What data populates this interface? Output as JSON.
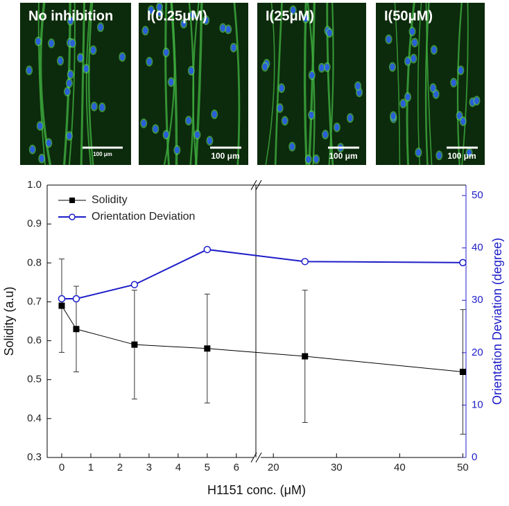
{
  "panels": [
    {
      "label": "No inhibition",
      "scale_bar": "100 μm"
    },
    {
      "label": "I(0.25μM)",
      "scale_bar": "100 μm"
    },
    {
      "label": "I(25μM)",
      "scale_bar": "100 μm"
    },
    {
      "label": "I(50μM)",
      "scale_bar": "100 μm"
    }
  ],
  "chart_data": {
    "type": "line",
    "x_label": "H1151 conc. (μM)",
    "y_label": "Solidity (a.u)",
    "y2_label": "Orientation Deviation (degree)",
    "x": [
      0,
      0.5,
      2.5,
      5,
      25,
      50
    ],
    "x_segments": [
      {
        "xlim": [
          -0.5,
          6.6
        ],
        "xticks": [
          0,
          1,
          2,
          3,
          4,
          5,
          6
        ]
      },
      {
        "xlim": [
          18,
          50.5
        ],
        "xticks": [
          20,
          30,
          40,
          50
        ]
      }
    ],
    "ylim": [
      0.3,
      1.0
    ],
    "yticks": [
      0.3,
      0.4,
      0.5,
      0.6,
      0.7,
      0.8,
      0.9,
      {
        "value": 1.0,
        "label": "1.0"
      }
    ],
    "y2lim": [
      0,
      52
    ],
    "y2ticks": [
      0,
      10,
      20,
      30,
      40,
      50
    ],
    "legend": "upper left",
    "series": [
      {
        "name": "Solidity",
        "color": "#000000",
        "marker": "square",
        "values": [
          0.69,
          0.63,
          0.59,
          0.58,
          0.56,
          0.52
        ],
        "errors": [
          0.12,
          0.11,
          0.14,
          0.14,
          0.17,
          0.16
        ]
      },
      {
        "name": "Orientation Deviation",
        "color": "#1c1cc8",
        "marker": "open-circle",
        "axis": "y2",
        "values": [
          30.3,
          30.3,
          33,
          39.7,
          37.4,
          37.2
        ]
      }
    ]
  }
}
